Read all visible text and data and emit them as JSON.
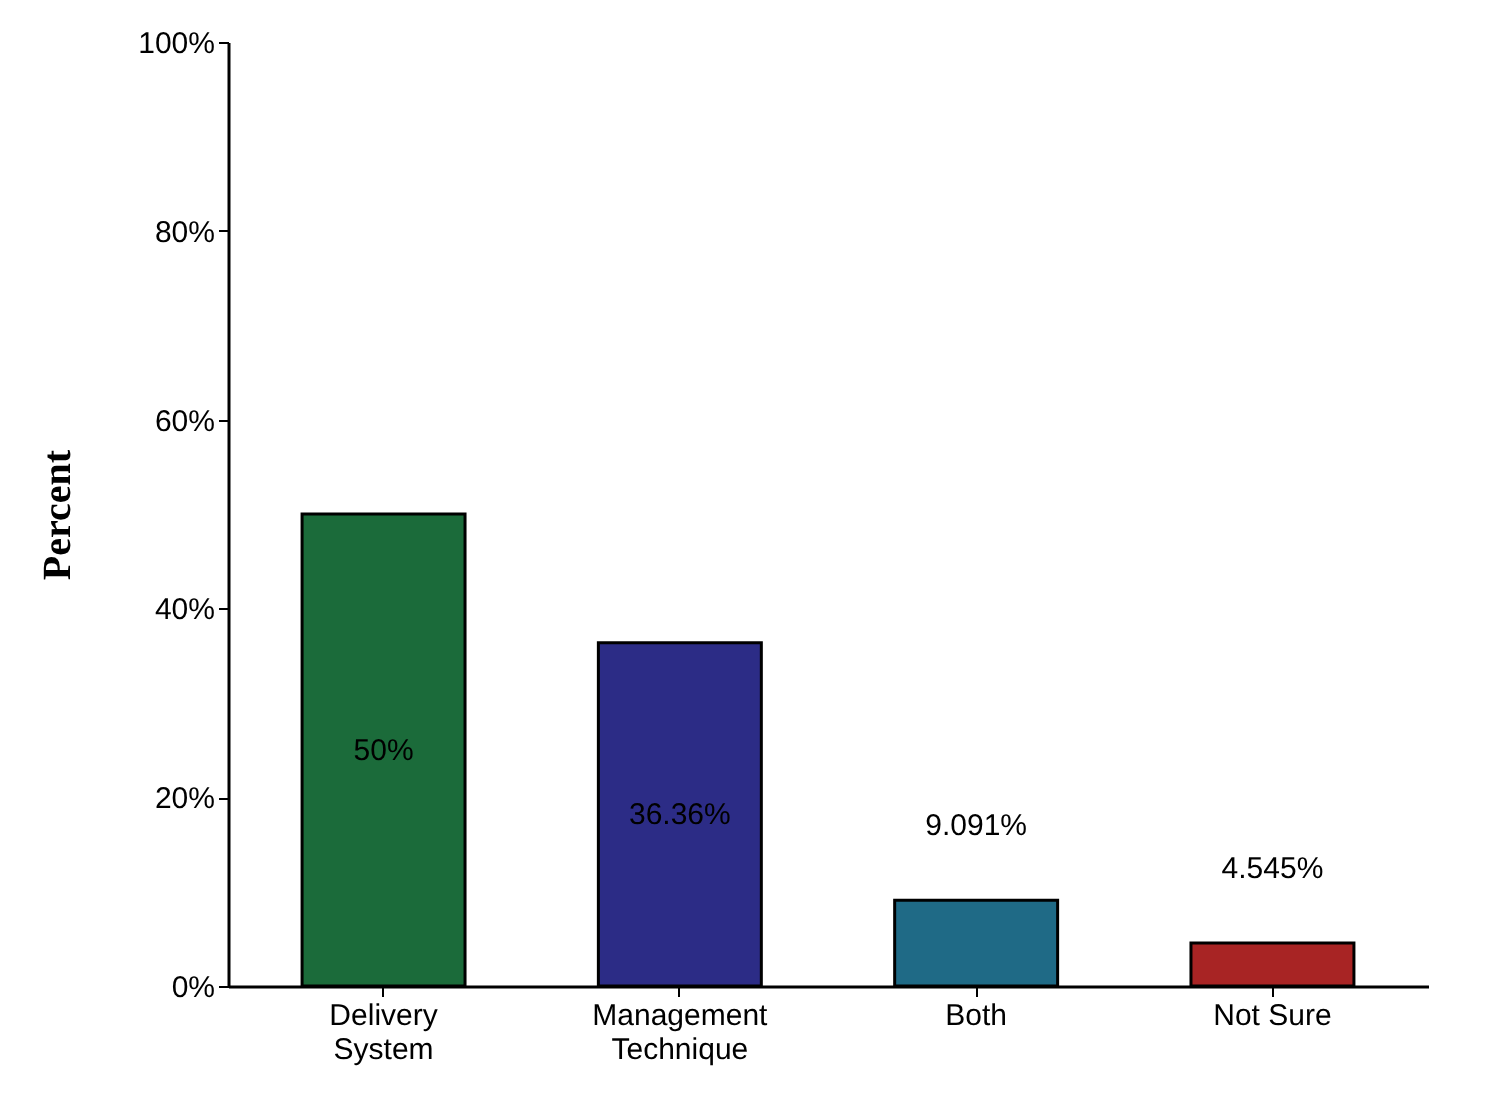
{
  "chart_data": {
    "type": "bar",
    "ylabel": "Percent",
    "categories": [
      "Delivery\nSystem",
      "Management\nTechnique",
      "Both",
      "Not Sure"
    ],
    "values": [
      50,
      36.36,
      9.091,
      4.545
    ],
    "colors": [
      "#1b6b3a",
      "#2c2c86",
      "#1f6a86",
      "#a82424"
    ],
    "value_labels": [
      "50%",
      "36.36%",
      "9.091%",
      "4.545%"
    ],
    "ylim": [
      0,
      100
    ],
    "yticks": [
      {
        "value": 0,
        "label": "0%"
      },
      {
        "value": 20,
        "label": "20%"
      },
      {
        "value": 40,
        "label": "40%"
      },
      {
        "value": 60,
        "label": "60%"
      },
      {
        "value": 80,
        "label": "80%"
      },
      {
        "value": 100,
        "label": "100%"
      }
    ],
    "grid": false
  }
}
